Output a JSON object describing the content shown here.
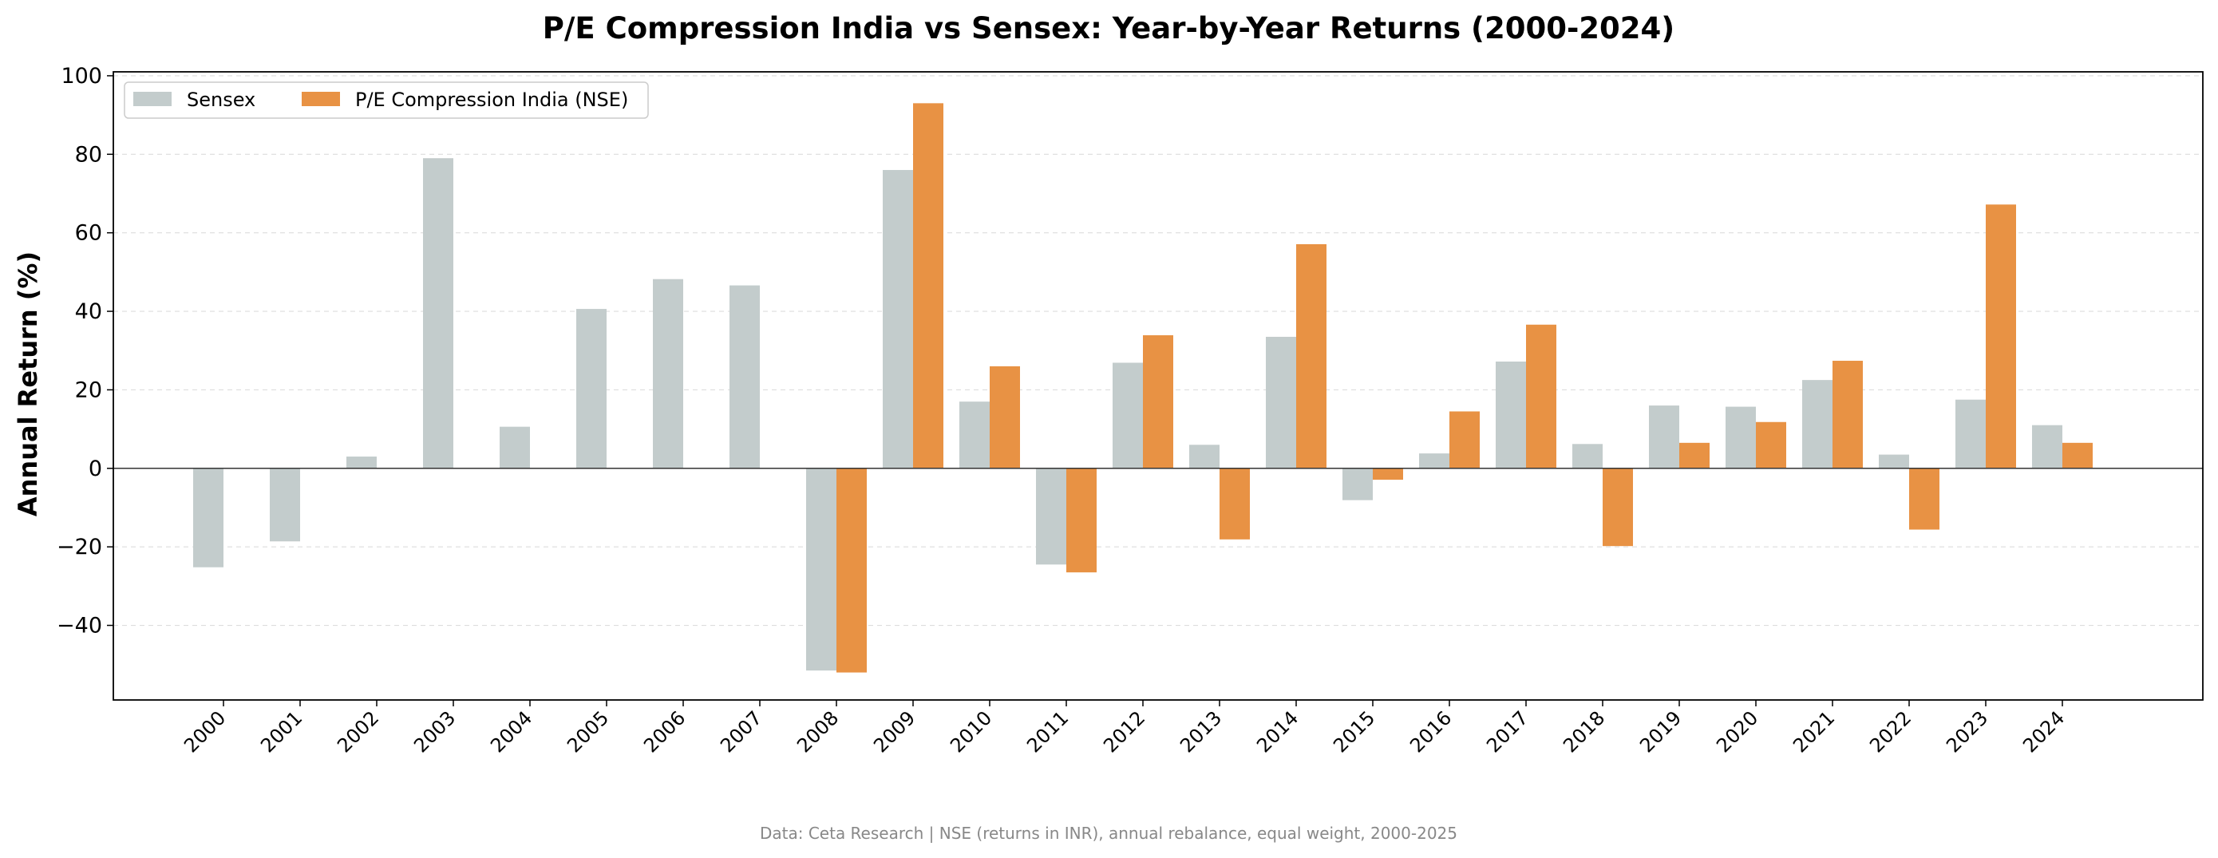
{
  "chart_data": {
    "type": "bar",
    "title": "P/E Compression India vs Sensex: Year-by-Year Returns (2000-2024)",
    "xlabel": "",
    "ylabel": "Annual Return (%)",
    "ylim": [
      -59,
      101
    ],
    "yticks": [
      -40,
      -20,
      0,
      20,
      40,
      60,
      80,
      100
    ],
    "ytick_labels": [
      "−40",
      "−20",
      "0",
      "20",
      "40",
      "60",
      "80",
      "100"
    ],
    "grid": "horizontal dashed",
    "legend_position": "top-left",
    "categories": [
      "2000",
      "2001",
      "2002",
      "2003",
      "2004",
      "2005",
      "2006",
      "2007",
      "2008",
      "2009",
      "2010",
      "2011",
      "2012",
      "2013",
      "2014",
      "2015",
      "2016",
      "2017",
      "2018",
      "2019",
      "2020",
      "2021",
      "2022",
      "2023",
      "2024"
    ],
    "series": [
      {
        "name": "Sensex",
        "color": "#c3cccc",
        "values": [
          -25.2,
          -18.6,
          3.0,
          79.0,
          10.6,
          40.6,
          48.2,
          46.6,
          -51.5,
          76.0,
          17.0,
          -24.5,
          26.9,
          6.0,
          33.5,
          -8.1,
          3.8,
          27.2,
          6.2,
          16.0,
          15.7,
          22.5,
          3.5,
          17.5,
          11.0
        ]
      },
      {
        "name": "P/E Compression India (NSE)",
        "color": "#e89244",
        "values": [
          null,
          null,
          null,
          null,
          null,
          null,
          null,
          null,
          -52.0,
          93.0,
          26.0,
          -26.5,
          33.9,
          -18.1,
          57.1,
          -2.9,
          14.5,
          36.6,
          -19.8,
          6.5,
          11.8,
          27.4,
          -15.6,
          67.2,
          6.5
        ]
      }
    ],
    "footer": "Data: Ceta Research | NSE (returns in INR), annual rebalance, equal weight, 2000-2025"
  }
}
